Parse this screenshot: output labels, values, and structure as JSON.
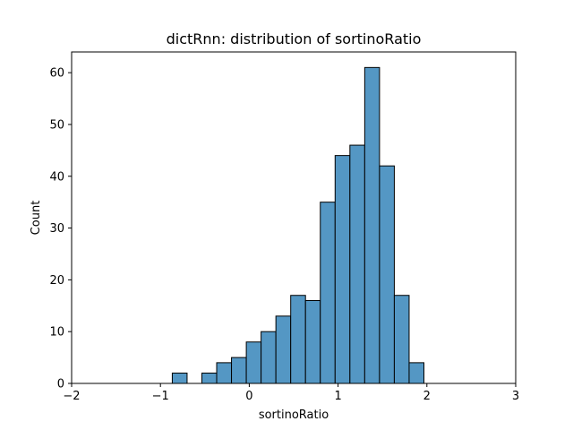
{
  "chart_data": {
    "type": "bar",
    "title": "dictRnn: distribution of sortinoRatio",
    "xlabel": "sortinoRatio",
    "ylabel": "Count",
    "xlim": [
      -2,
      3
    ],
    "ylim": [
      0,
      64
    ],
    "x_ticks": [
      -2,
      -1,
      0,
      1,
      2,
      3
    ],
    "y_ticks": [
      0,
      10,
      20,
      30,
      40,
      50,
      60
    ],
    "bin_width": 0.1667,
    "bar_color": "#5497c4",
    "edge_color": "#000000",
    "bins": [
      {
        "x0": -0.8667,
        "x1": -0.7,
        "count": 2
      },
      {
        "x0": -0.7,
        "x1": -0.5333,
        "count": 0
      },
      {
        "x0": -0.5333,
        "x1": -0.3667,
        "count": 2
      },
      {
        "x0": -0.3667,
        "x1": -0.2,
        "count": 4
      },
      {
        "x0": -0.2,
        "x1": -0.0333,
        "count": 5
      },
      {
        "x0": -0.0333,
        "x1": 0.1333,
        "count": 8
      },
      {
        "x0": 0.1333,
        "x1": 0.3,
        "count": 10
      },
      {
        "x0": 0.3,
        "x1": 0.4667,
        "count": 13
      },
      {
        "x0": 0.4667,
        "x1": 0.6333,
        "count": 17
      },
      {
        "x0": 0.6333,
        "x1": 0.8,
        "count": 16
      },
      {
        "x0": 0.8,
        "x1": 0.9667,
        "count": 35
      },
      {
        "x0": 0.9667,
        "x1": 1.1333,
        "count": 44
      },
      {
        "x0": 1.1333,
        "x1": 1.3,
        "count": 46
      },
      {
        "x0": 1.3,
        "x1": 1.4667,
        "count": 61
      },
      {
        "x0": 1.4667,
        "x1": 1.6333,
        "count": 42
      },
      {
        "x0": 1.6333,
        "x1": 1.8,
        "count": 17
      },
      {
        "x0": 1.8,
        "x1": 1.9667,
        "count": 4
      }
    ]
  }
}
